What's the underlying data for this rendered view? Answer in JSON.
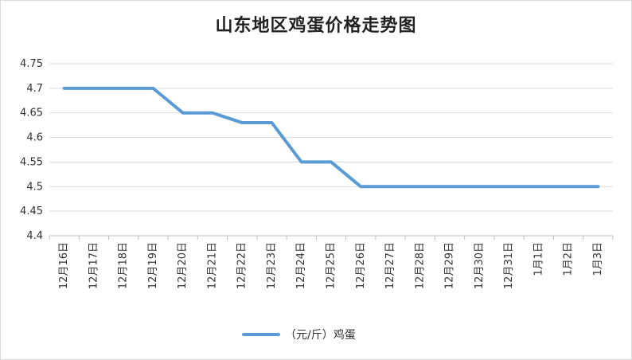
{
  "chart_data": {
    "type": "line",
    "title": "山东地区鸡蛋价格走势图",
    "categories": [
      "12月16日",
      "12月17日",
      "12月18日",
      "12月19日",
      "12月20日",
      "12月21日",
      "12月22日",
      "12月23日",
      "12月24日",
      "12月25日",
      "12月26日",
      "12月27日",
      "12月28日",
      "12月29日",
      "12月30日",
      "12月31日",
      "1月1日",
      "1月2日",
      "1月3日"
    ],
    "series": [
      {
        "name": "（元/斤）鸡蛋",
        "color": "#5b9bd5",
        "values": [
          4.7,
          4.7,
          4.7,
          4.7,
          4.65,
          4.65,
          4.63,
          4.63,
          4.55,
          4.55,
          4.5,
          4.5,
          4.5,
          4.5,
          4.5,
          4.5,
          4.5,
          4.5,
          4.5
        ]
      }
    ],
    "ylim": [
      4.4,
      4.75
    ],
    "yticks": [
      "4.4",
      "4.45",
      "4.5",
      "4.55",
      "4.6",
      "4.65",
      "4.7",
      "4.75"
    ],
    "grid": true,
    "legend": "bottom"
  }
}
